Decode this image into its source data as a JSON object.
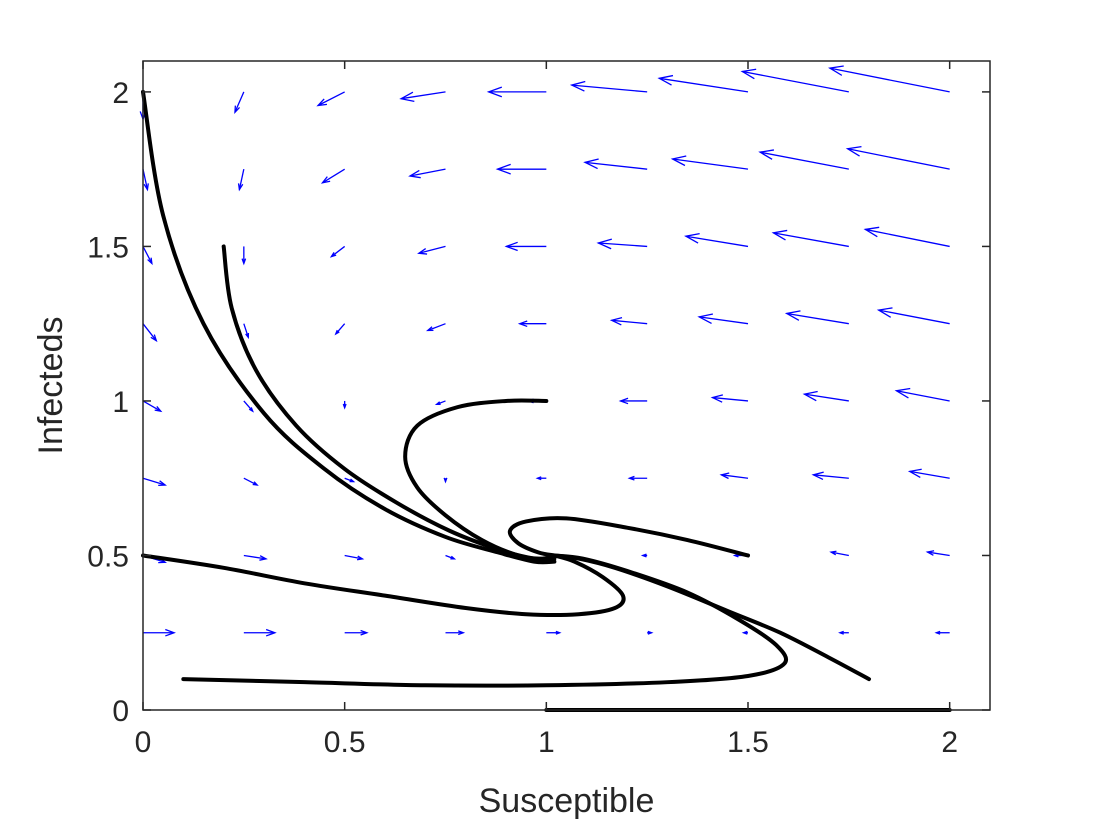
{
  "chart_data": {
    "type": "phase-portrait",
    "xlabel": "Susceptible",
    "ylabel": "Infecteds",
    "xlim": [
      0,
      2.1
    ],
    "ylim": [
      0,
      2.1
    ],
    "xticks": [
      0,
      0.5,
      1,
      1.5,
      2
    ],
    "xtick_labels": [
      "0",
      "0.5",
      "1",
      "1.5",
      "2"
    ],
    "yticks": [
      0,
      0.5,
      1,
      1.5,
      2
    ],
    "ytick_labels": [
      "0",
      "0.5",
      "1",
      "1.5",
      "2"
    ],
    "grid": false,
    "box": true,
    "colors": {
      "quiver": "#0000ff",
      "trajectory": "#000000",
      "axis": "#262626"
    },
    "quiver": {
      "x": [
        0,
        0.25,
        0.5,
        0.75,
        1,
        1.25,
        1.5,
        1.75,
        2
      ],
      "y": [
        0,
        0.25,
        0.5,
        0.75,
        1,
        1.25,
        1.5,
        1.75,
        2
      ],
      "vectors": [
        [
          [
            0,
            0
          ],
          [
            0,
            0
          ],
          [
            0,
            0
          ],
          [
            0,
            0
          ],
          [
            0,
            0
          ],
          [
            0,
            0
          ],
          [
            0,
            0
          ],
          [
            0,
            0
          ],
          [
            0,
            0
          ]
        ],
        [
          [
            0.07,
            0
          ],
          [
            0.07,
            0
          ],
          [
            0.05,
            0
          ],
          [
            0.04,
            0
          ],
          [
            0.03,
            0
          ],
          [
            0.01,
            0
          ],
          [
            -0.01,
            0
          ],
          [
            -0.02,
            0
          ],
          [
            -0.03,
            0
          ]
        ],
        [
          [
            0.05,
            -0.02
          ],
          [
            0.05,
            -0.01
          ],
          [
            0.04,
            -0.01
          ],
          [
            0.02,
            -0.01
          ],
          [
            0,
            0
          ],
          [
            -0.01,
            0
          ],
          [
            -0.03,
            0
          ],
          [
            -0.04,
            0.01
          ],
          [
            -0.05,
            0.01
          ]
        ],
        [
          [
            0.05,
            -0.02
          ],
          [
            0.03,
            -0.02
          ],
          [
            0.02,
            -0.01
          ],
          [
            0,
            -0.01
          ],
          [
            -0.02,
            0
          ],
          [
            -0.04,
            0
          ],
          [
            -0.06,
            0.01
          ],
          [
            -0.08,
            0.01
          ],
          [
            -0.09,
            0.02
          ]
        ],
        [
          [
            0.04,
            -0.03
          ],
          [
            0.02,
            -0.03
          ],
          [
            0,
            -0.02
          ],
          [
            -0.02,
            -0.01
          ],
          [
            -0.04,
            0
          ],
          [
            -0.06,
            0
          ],
          [
            -0.08,
            0.01
          ],
          [
            -0.1,
            0.02
          ],
          [
            -0.12,
            0.03
          ]
        ],
        [
          [
            0.03,
            -0.05
          ],
          [
            0.01,
            -0.04
          ],
          [
            -0.02,
            -0.03
          ],
          [
            -0.04,
            -0.02
          ],
          [
            -0.06,
            0
          ],
          [
            -0.08,
            0.01
          ],
          [
            -0.11,
            0.02
          ],
          [
            -0.14,
            0.03
          ],
          [
            -0.16,
            0.04
          ]
        ],
        [
          [
            0.02,
            -0.05
          ],
          [
            0,
            -0.05
          ],
          [
            -0.03,
            -0.03
          ],
          [
            -0.06,
            -0.02
          ],
          [
            -0.09,
            0
          ],
          [
            -0.11,
            0.01
          ],
          [
            -0.14,
            0.03
          ],
          [
            -0.17,
            0.04
          ],
          [
            -0.19,
            0.05
          ]
        ],
        [
          [
            0.01,
            -0.06
          ],
          [
            -0.01,
            -0.06
          ],
          [
            -0.05,
            -0.04
          ],
          [
            -0.08,
            -0.02
          ],
          [
            -0.11,
            0
          ],
          [
            -0.14,
            0.02
          ],
          [
            -0.17,
            0.03
          ],
          [
            -0.2,
            0.05
          ],
          [
            -0.23,
            0.06
          ]
        ],
        [
          [
            0,
            -0.08
          ],
          [
            -0.02,
            -0.06
          ],
          [
            -0.06,
            -0.04
          ],
          [
            -0.1,
            -0.02
          ],
          [
            -0.13,
            0
          ],
          [
            -0.17,
            0.02
          ],
          [
            -0.2,
            0.04
          ],
          [
            -0.24,
            0.06
          ],
          [
            -0.27,
            0.07
          ]
        ]
      ]
    },
    "trajectories": [
      {
        "points": [
          [
            0,
            2
          ],
          [
            0.05,
            1.6
          ],
          [
            0.15,
            1.25
          ],
          [
            0.3,
            0.96
          ],
          [
            0.45,
            0.78
          ],
          [
            0.6,
            0.65
          ],
          [
            0.75,
            0.56
          ],
          [
            0.88,
            0.51
          ],
          [
            0.97,
            0.48
          ],
          [
            1.02,
            0.48
          ]
        ]
      },
      {
        "points": [
          [
            0.2,
            1.5
          ],
          [
            0.22,
            1.3
          ],
          [
            0.28,
            1.1
          ],
          [
            0.38,
            0.92
          ],
          [
            0.5,
            0.78
          ],
          [
            0.63,
            0.67
          ],
          [
            0.76,
            0.58
          ],
          [
            0.88,
            0.52
          ],
          [
            0.97,
            0.49
          ],
          [
            1.02,
            0.49
          ]
        ]
      },
      {
        "points": [
          [
            1,
            1
          ],
          [
            0.9,
            1.0
          ],
          [
            0.78,
            0.98
          ],
          [
            0.68,
            0.92
          ],
          [
            0.65,
            0.82
          ],
          [
            0.68,
            0.72
          ],
          [
            0.75,
            0.63
          ],
          [
            0.84,
            0.55
          ],
          [
            0.93,
            0.5
          ],
          [
            0.99,
            0.49
          ],
          [
            1.02,
            0.5
          ]
        ]
      },
      {
        "points": [
          [
            1.5,
            0.5
          ],
          [
            1.35,
            0.55
          ],
          [
            1.2,
            0.59
          ],
          [
            1.05,
            0.62
          ],
          [
            0.95,
            0.61
          ],
          [
            0.91,
            0.58
          ],
          [
            0.93,
            0.54
          ],
          [
            0.98,
            0.51
          ],
          [
            1.02,
            0.5
          ]
        ]
      },
      {
        "points": [
          [
            0,
            0.5
          ],
          [
            0.2,
            0.46
          ],
          [
            0.4,
            0.41
          ],
          [
            0.6,
            0.37
          ],
          [
            0.8,
            0.33
          ],
          [
            0.95,
            0.31
          ],
          [
            1.08,
            0.31
          ],
          [
            1.17,
            0.33
          ],
          [
            1.19,
            0.37
          ],
          [
            1.14,
            0.43
          ],
          [
            1.07,
            0.48
          ],
          [
            1.02,
            0.5
          ]
        ]
      },
      {
        "points": [
          [
            0.1,
            0.1
          ],
          [
            0.4,
            0.09
          ],
          [
            0.7,
            0.08
          ],
          [
            1.0,
            0.08
          ],
          [
            1.3,
            0.09
          ],
          [
            1.5,
            0.11
          ],
          [
            1.59,
            0.15
          ],
          [
            1.57,
            0.21
          ],
          [
            1.48,
            0.29
          ],
          [
            1.35,
            0.38
          ],
          [
            1.2,
            0.45
          ],
          [
            1.09,
            0.49
          ],
          [
            1.02,
            0.5
          ]
        ]
      },
      {
        "points": [
          [
            1.8,
            0.1
          ],
          [
            1.7,
            0.17
          ],
          [
            1.58,
            0.25
          ],
          [
            1.45,
            0.32
          ],
          [
            1.3,
            0.4
          ],
          [
            1.17,
            0.46
          ],
          [
            1.08,
            0.49
          ],
          [
            1.02,
            0.5
          ]
        ]
      },
      {
        "points": [
          [
            1,
            0
          ],
          [
            1.25,
            0
          ],
          [
            1.5,
            0
          ],
          [
            1.75,
            0
          ],
          [
            2,
            0
          ]
        ]
      }
    ]
  }
}
